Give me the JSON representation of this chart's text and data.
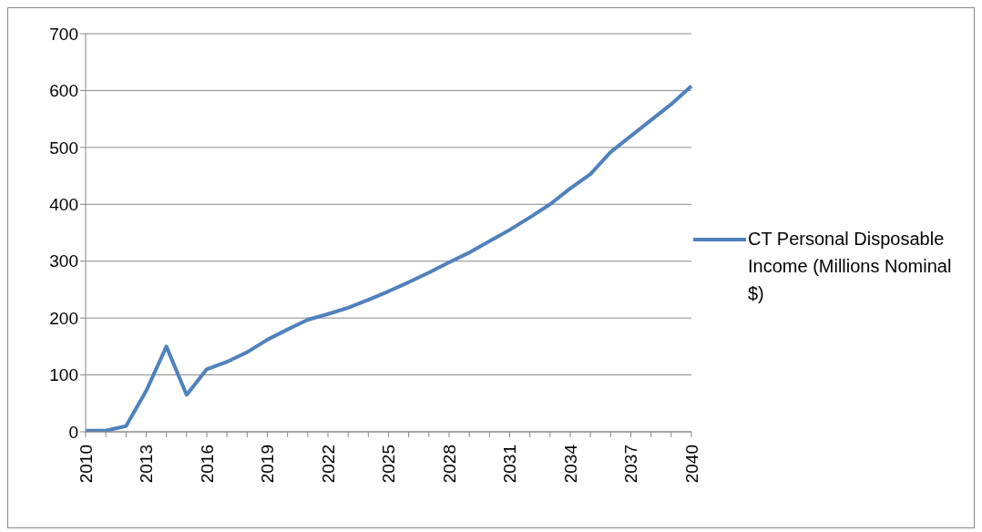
{
  "chart_data": {
    "type": "line",
    "categories": [
      "2010",
      null,
      null,
      "2013",
      null,
      null,
      "2016",
      null,
      null,
      "2019",
      null,
      null,
      "2022",
      null,
      null,
      "2025",
      null,
      null,
      "2028",
      null,
      null,
      "2031",
      null,
      null,
      "2034",
      null,
      null,
      "2037",
      null,
      null,
      "2040"
    ],
    "series": [
      {
        "name": "CT Personal Disposable Income (Millions Nominal $)",
        "color": "#4f81bd",
        "values": [
          2,
          2,
          10,
          72,
          150,
          65,
          110,
          123,
          140,
          162,
          180,
          197,
          207,
          218,
          232,
          247,
          263,
          280,
          298,
          315,
          335,
          355,
          377,
          400,
          428,
          453,
          492,
          520,
          548,
          576,
          608
        ]
      }
    ],
    "ylim": [
      0,
      700
    ],
    "yticks": [
      0,
      100,
      200,
      300,
      400,
      500,
      600,
      700
    ],
    "grid": "y",
    "legend": "right",
    "marker": "none",
    "line_style": "solid"
  }
}
